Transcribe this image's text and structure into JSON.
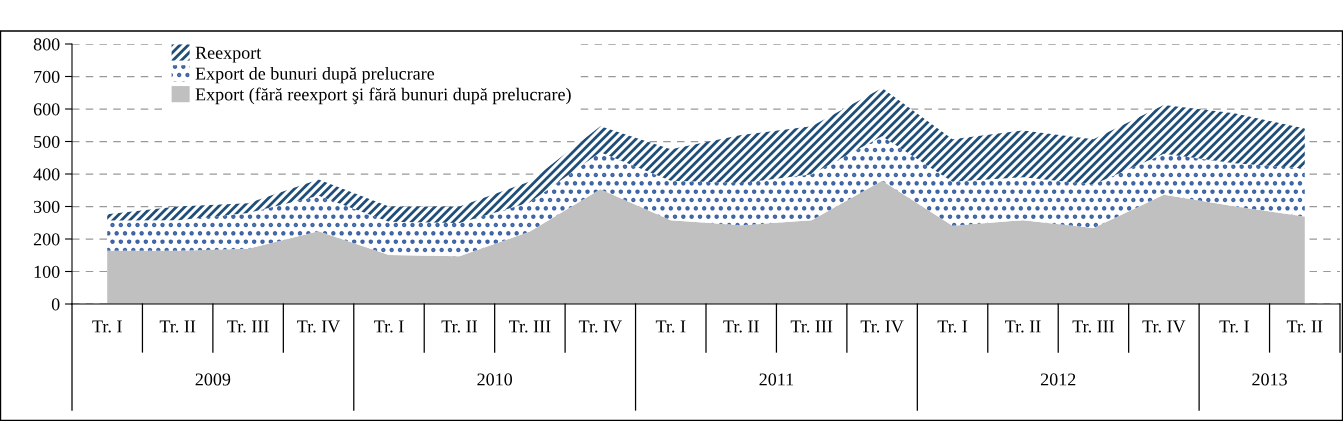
{
  "chart_data": {
    "type": "area",
    "stacked": true,
    "categories": [
      "Tr. I",
      "Tr. II",
      "Tr. III",
      "Tr. IV",
      "Tr. I",
      "Tr. II",
      "Tr. III",
      "Tr. IV",
      "Tr. I",
      "Tr. II",
      "Tr. III",
      "Tr. IV",
      "Tr. I",
      "Tr. II",
      "Tr. III",
      "Tr. IV",
      "Tr. I",
      "Tr. II"
    ],
    "series": [
      {
        "name": "Export (fără reexport şi fără bunuri după prelucrare)",
        "color": "#c0c0c0",
        "values": [
          164,
          164,
          170,
          224,
          151,
          147,
          223,
          353,
          258,
          242,
          258,
          379,
          241,
          258,
          234,
          336,
          301,
          269
        ]
      },
      {
        "name": "Export de bunuri după prelucrare",
        "color": "#3b62a3",
        "values": [
          93,
          94,
          110,
          109,
          102,
          102,
          90,
          114,
          121,
          130,
          141,
          137,
          135,
          132,
          134,
          126,
          132,
          148
        ]
      },
      {
        "name": "Reexport",
        "color": "#1f4e79",
        "values": [
          19,
          42,
          30,
          50,
          47,
          51,
          64,
          80,
          97,
          148,
          148,
          149,
          131,
          144,
          139,
          150,
          154,
          123
        ]
      }
    ],
    "annotations": [
      "2009",
      "2010",
      "2011",
      "2012",
      "2013"
    ],
    "ylim": [
      0,
      800
    ],
    "yticks": [
      0,
      100,
      200,
      300,
      400,
      500,
      600,
      700,
      800
    ],
    "grid": "y",
    "legend": "top left"
  }
}
